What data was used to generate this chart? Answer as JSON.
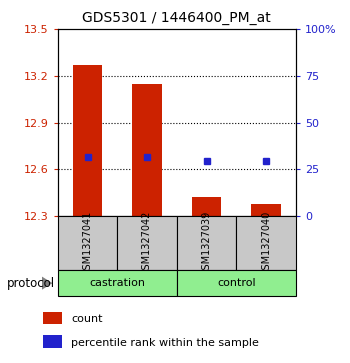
{
  "title": "GDS5301 / 1446400_PM_at",
  "samples": [
    "GSM1327041",
    "GSM1327042",
    "GSM1327039",
    "GSM1327040"
  ],
  "group_labels": [
    "castration",
    "control"
  ],
  "bar_values": [
    13.27,
    13.15,
    12.42,
    12.38
  ],
  "bar_bottom": 12.3,
  "blue_dot_values": [
    12.68,
    12.68,
    12.65,
    12.65
  ],
  "ylim_left": [
    12.3,
    13.5
  ],
  "ylim_right": [
    0,
    100
  ],
  "yticks_left": [
    12.3,
    12.6,
    12.9,
    13.2,
    13.5
  ],
  "ytick_labels_left": [
    "12.3",
    "12.6",
    "12.9",
    "13.2",
    "13.5"
  ],
  "yticks_right": [
    0,
    25,
    50,
    75,
    100
  ],
  "ytick_labels_right": [
    "0",
    "25",
    "50",
    "75",
    "100%"
  ],
  "hgrid_values": [
    12.6,
    12.9,
    13.2
  ],
  "bar_color": "#CC2200",
  "dot_color": "#2222CC",
  "left_tick_color": "#CC2200",
  "right_tick_color": "#2222CC",
  "label_area_color": "#C8C8C8",
  "group_area_color": "#90EE90",
  "bar_width": 0.5,
  "legend_count_label": "count",
  "legend_percentile_label": "percentile rank within the sample",
  "protocol_label": "protocol"
}
